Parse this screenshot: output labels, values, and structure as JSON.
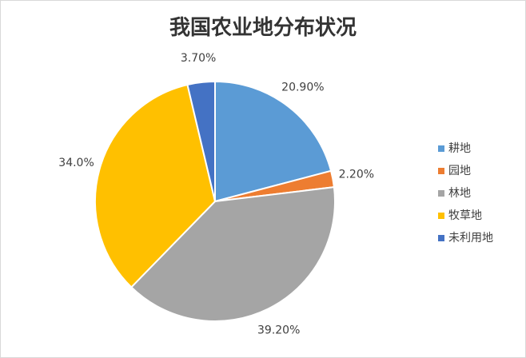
{
  "chart_data": {
    "type": "pie",
    "title": "我国农业地分布状况",
    "categories": [
      "耕地",
      "园地",
      "林地",
      "牧草地",
      "未利用地"
    ],
    "values": [
      20.9,
      2.2,
      39.2,
      34.0,
      3.7
    ],
    "value_labels": [
      "20.90%",
      "2.20%",
      "39.20%",
      "34.0%",
      "3.70%"
    ],
    "colors": [
      "#5b9bd5",
      "#ed7d31",
      "#a5a5a5",
      "#ffc000",
      "#4472c4"
    ],
    "legend": "right"
  }
}
